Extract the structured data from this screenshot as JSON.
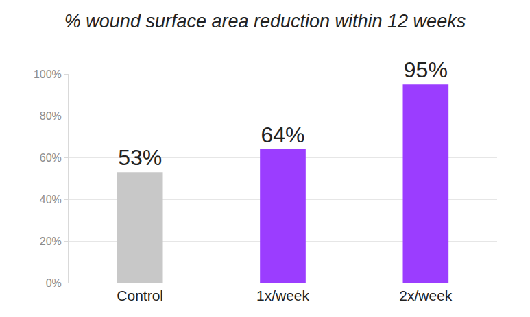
{
  "chart_data": {
    "type": "bar",
    "title": "% wound surface area reduction within 12 weeks",
    "categories": [
      "Control",
      "1x/week",
      "2x/week"
    ],
    "values": [
      53,
      64,
      95
    ],
    "value_labels": [
      "53%",
      "64%",
      "95%"
    ],
    "colors": [
      "#c8c8c8",
      "#9b3dff",
      "#9b3dff"
    ],
    "ylim": [
      0,
      100
    ],
    "yticks": [
      {
        "value": 0,
        "label": "0%"
      },
      {
        "value": 20,
        "label": "20%"
      },
      {
        "value": 40,
        "label": "40%"
      },
      {
        "value": 60,
        "label": "60%"
      },
      {
        "value": 80,
        "label": "80%"
      },
      {
        "value": 100,
        "label": "100%"
      }
    ],
    "grid": true,
    "data_labels": true
  }
}
